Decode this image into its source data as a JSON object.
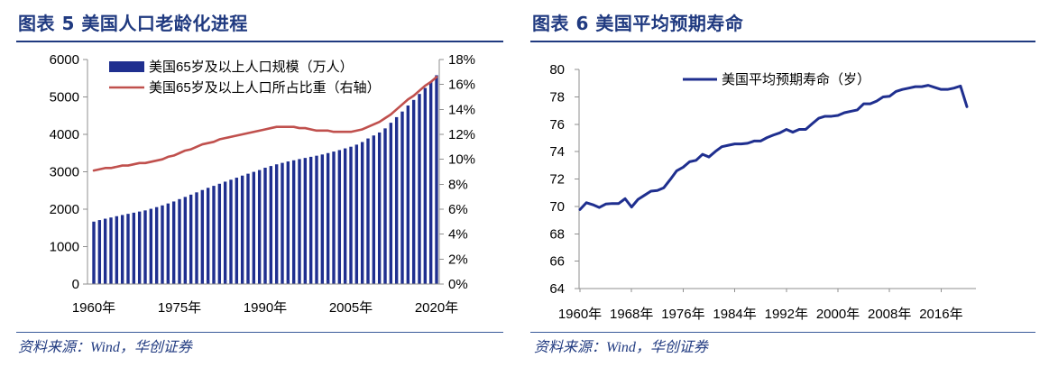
{
  "chart_data": [
    {
      "type": "bar",
      "title": "图表 5 美国人口老龄化进程",
      "source": "资料来源：Wind，华创证券",
      "x": [
        1960,
        1961,
        1962,
        1963,
        1964,
        1965,
        1966,
        1967,
        1968,
        1969,
        1970,
        1971,
        1972,
        1973,
        1974,
        1975,
        1976,
        1977,
        1978,
        1979,
        1980,
        1981,
        1982,
        1983,
        1984,
        1985,
        1986,
        1987,
        1988,
        1989,
        1990,
        1991,
        1992,
        1993,
        1994,
        1995,
        1996,
        1997,
        1998,
        1999,
        2000,
        2001,
        2002,
        2003,
        2004,
        2005,
        2006,
        2007,
        2008,
        2009,
        2010,
        2011,
        2012,
        2013,
        2014,
        2015,
        2016,
        2017,
        2018,
        2019,
        2020
      ],
      "xtick_values": [
        1960,
        1975,
        1990,
        2005,
        2020
      ],
      "xtick_labels": [
        "1960年",
        "1975年",
        "1990年",
        "2005年",
        "2020年"
      ],
      "ylim": [
        0,
        6000
      ],
      "ytick_values": [
        0,
        1000,
        2000,
        3000,
        4000,
        5000,
        6000
      ],
      "ytick_labels": [
        "0",
        "1000",
        "2000",
        "3000",
        "4000",
        "5000",
        "6000"
      ],
      "ylim_right": [
        0,
        18
      ],
      "ytick_right_values": [
        0,
        2,
        4,
        6,
        8,
        10,
        12,
        14,
        16,
        18
      ],
      "ytick_right_labels": [
        "0%",
        "2%",
        "4%",
        "6%",
        "8%",
        "10%",
        "12%",
        "14%",
        "16%",
        "18%"
      ],
      "grid": false,
      "legend": "top-left",
      "series": [
        {
          "name": "美国65岁及以上人口规模（万人）",
          "type": "bar",
          "right_axis": false,
          "color": "#1f2f8f",
          "values": [
            1668,
            1709,
            1746,
            1778,
            1813,
            1845,
            1876,
            1907,
            1937,
            1968,
            2011,
            2056,
            2102,
            2153,
            2206,
            2270,
            2328,
            2389,
            2450,
            2513,
            2571,
            2624,
            2680,
            2736,
            2788,
            2842,
            2898,
            2949,
            2998,
            3047,
            3108,
            3154,
            3199,
            3238,
            3276,
            3307,
            3340,
            3370,
            3400,
            3430,
            3462,
            3500,
            3540,
            3580,
            3625,
            3670,
            3725,
            3795,
            3890,
            3970,
            4050,
            4160,
            4310,
            4460,
            4610,
            4770,
            4920,
            5080,
            5240,
            5410,
            5580
          ]
        },
        {
          "name": "美国65岁及以上人口所占比重（右轴）",
          "type": "line",
          "right_axis": true,
          "color": "#c0504d",
          "values": [
            9.1,
            9.2,
            9.3,
            9.3,
            9.4,
            9.5,
            9.5,
            9.6,
            9.7,
            9.7,
            9.8,
            9.9,
            10.0,
            10.2,
            10.3,
            10.5,
            10.7,
            10.8,
            11.0,
            11.2,
            11.3,
            11.4,
            11.6,
            11.7,
            11.8,
            11.9,
            12.0,
            12.1,
            12.2,
            12.3,
            12.4,
            12.5,
            12.6,
            12.6,
            12.6,
            12.6,
            12.5,
            12.5,
            12.4,
            12.3,
            12.3,
            12.3,
            12.2,
            12.2,
            12.2,
            12.2,
            12.3,
            12.4,
            12.6,
            12.8,
            13.0,
            13.3,
            13.6,
            14.0,
            14.4,
            14.8,
            15.1,
            15.5,
            15.9,
            16.2,
            16.6
          ]
        }
      ]
    },
    {
      "type": "line",
      "title": "图表 6 美国平均预期寿命",
      "source": "资料来源：Wind，华创证券",
      "x": [
        1960,
        1961,
        1962,
        1963,
        1964,
        1965,
        1966,
        1967,
        1968,
        1969,
        1970,
        1971,
        1972,
        1973,
        1974,
        1975,
        1976,
        1977,
        1978,
        1979,
        1980,
        1981,
        1982,
        1983,
        1984,
        1985,
        1986,
        1987,
        1988,
        1989,
        1990,
        1991,
        1992,
        1993,
        1994,
        1995,
        1996,
        1997,
        1998,
        1999,
        2000,
        2001,
        2002,
        2003,
        2004,
        2005,
        2006,
        2007,
        2008,
        2009,
        2010,
        2011,
        2012,
        2013,
        2014,
        2015,
        2016,
        2017,
        2018,
        2019,
        2020
      ],
      "xtick_values": [
        1960,
        1968,
        1976,
        1984,
        1992,
        2000,
        2008,
        2016
      ],
      "xtick_labels": [
        "1960年",
        "1968年",
        "1976年",
        "1984年",
        "1992年",
        "2000年",
        "2008年",
        "2016年"
      ],
      "ylim": [
        64,
        80
      ],
      "ytick_values": [
        64,
        66,
        68,
        70,
        72,
        74,
        76,
        78,
        80
      ],
      "ytick_labels": [
        "64",
        "66",
        "68",
        "70",
        "72",
        "74",
        "76",
        "78",
        "80"
      ],
      "grid": false,
      "legend": "top",
      "series": [
        {
          "name": "美国平均预期寿命（岁）",
          "color": "#1f2f8f",
          "values": [
            69.77,
            70.27,
            70.12,
            69.92,
            70.17,
            70.21,
            70.21,
            70.56,
            69.95,
            70.51,
            70.81,
            71.11,
            71.16,
            71.36,
            71.96,
            72.6,
            72.86,
            73.26,
            73.36,
            73.8,
            73.61,
            74.01,
            74.36,
            74.46,
            74.56,
            74.56,
            74.61,
            74.77,
            74.77,
            75.02,
            75.21,
            75.37,
            75.62,
            75.42,
            75.62,
            75.62,
            76.03,
            76.43,
            76.58,
            76.58,
            76.64,
            76.84,
            76.94,
            77.04,
            77.49,
            77.49,
            77.69,
            77.99,
            78.04,
            78.39,
            78.54,
            78.64,
            78.74,
            78.74,
            78.84,
            78.69,
            78.54,
            78.54,
            78.64,
            78.79,
            77.28
          ]
        }
      ]
    }
  ]
}
